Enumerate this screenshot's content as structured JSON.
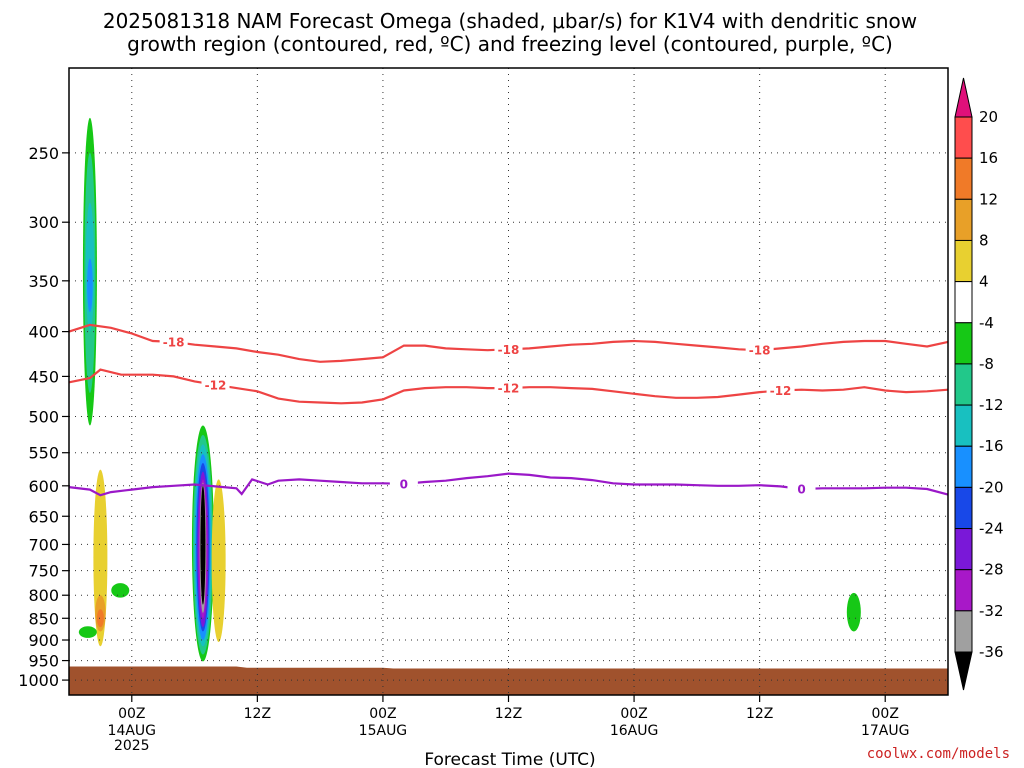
{
  "title_line1": "2025081318 NAM Forecast Omega (shaded, μbar/s) for K1V4 with dendritic snow",
  "title_line2": "growth region (contoured, red, ºC) and freezing level (contoured, purple, ºC)",
  "credit": "coolwx.com/models",
  "chart_data": {
    "type": "heatmap",
    "xlabel": "Forecast Time (UTC)",
    "y_axis": {
      "reversed": true,
      "ticks": [
        "250",
        "300",
        "350",
        "400",
        "450",
        "500",
        "550",
        "600",
        "650",
        "700",
        "750",
        "800",
        "850",
        "900",
        "950",
        "1000"
      ]
    },
    "x_axis": {
      "ticks": [
        {
          "label": "00Z",
          "date": "14AUG",
          "year": "2025",
          "hour": 6
        },
        {
          "label": "12Z",
          "date": "",
          "year": "",
          "hour": 18
        },
        {
          "label": "00Z",
          "date": "15AUG",
          "year": "",
          "hour": 30
        },
        {
          "label": "12Z",
          "date": "",
          "year": "",
          "hour": 42
        },
        {
          "label": "00Z",
          "date": "16AUG",
          "year": "",
          "hour": 54
        },
        {
          "label": "12Z",
          "date": "",
          "year": "",
          "hour": 66
        },
        {
          "label": "00Z",
          "date": "17AUG",
          "year": "",
          "hour": 78
        }
      ],
      "range_hours": [
        0,
        84
      ]
    },
    "grid": true,
    "colorbar": {
      "levels": [
        "20",
        "16",
        "12",
        "8",
        "4",
        "-4",
        "-8",
        "-12",
        "-16",
        "-20",
        "-24",
        "-28",
        "-32",
        "-36"
      ],
      "colors": [
        "#ff3a3a",
        "#ff4d4d",
        "#f07a28",
        "#e8a028",
        "#e8d030",
        "#ffffff",
        "#16c816",
        "#22c88a",
        "#18c0c0",
        "#1890ff",
        "#1848e8",
        "#7a18d8",
        "#a818c8",
        "#a0a0a0",
        "#000000"
      ],
      "top_arrow_color": "#e0107a",
      "bottom_arrow_color": "#000000"
    },
    "contours": [
      {
        "label": "-18",
        "color": "#ee4444",
        "points": [
          [
            0,
            400
          ],
          [
            2,
            393
          ],
          [
            4,
            396
          ],
          [
            6,
            402
          ],
          [
            8,
            410
          ],
          [
            10,
            411
          ],
          [
            12,
            414
          ],
          [
            14,
            416
          ],
          [
            16,
            418
          ],
          [
            18,
            422
          ],
          [
            20,
            425
          ],
          [
            22,
            430
          ],
          [
            24,
            433
          ],
          [
            26,
            432
          ],
          [
            28,
            430
          ],
          [
            30,
            428
          ],
          [
            32,
            415
          ],
          [
            34,
            415
          ],
          [
            36,
            418
          ],
          [
            38,
            419
          ],
          [
            40,
            420
          ],
          [
            42,
            419
          ],
          [
            44,
            418
          ],
          [
            46,
            416
          ],
          [
            48,
            414
          ],
          [
            50,
            413
          ],
          [
            52,
            411
          ],
          [
            54,
            410
          ],
          [
            56,
            411
          ],
          [
            58,
            413
          ],
          [
            60,
            415
          ],
          [
            62,
            417
          ],
          [
            64,
            419
          ],
          [
            66,
            420
          ],
          [
            68,
            418
          ],
          [
            70,
            416
          ],
          [
            72,
            413
          ],
          [
            74,
            411
          ],
          [
            76,
            410
          ],
          [
            78,
            410
          ],
          [
            80,
            413
          ],
          [
            82,
            416
          ],
          [
            84,
            411
          ]
        ],
        "label_hours": [
          10,
          42,
          66
        ]
      },
      {
        "label": "-12",
        "color": "#ee4444",
        "points": [
          [
            0,
            457
          ],
          [
            2,
            452
          ],
          [
            3,
            442
          ],
          [
            5,
            448
          ],
          [
            8,
            448
          ],
          [
            10,
            450
          ],
          [
            12,
            456
          ],
          [
            14,
            460
          ],
          [
            16,
            464
          ],
          [
            18,
            468
          ],
          [
            20,
            477
          ],
          [
            22,
            481
          ],
          [
            24,
            482
          ],
          [
            26,
            483
          ],
          [
            28,
            482
          ],
          [
            30,
            478
          ],
          [
            32,
            467
          ],
          [
            34,
            464
          ],
          [
            36,
            463
          ],
          [
            38,
            463
          ],
          [
            40,
            464
          ],
          [
            42,
            464
          ],
          [
            44,
            463
          ],
          [
            46,
            463
          ],
          [
            48,
            464
          ],
          [
            50,
            465
          ],
          [
            52,
            468
          ],
          [
            54,
            471
          ],
          [
            56,
            474
          ],
          [
            58,
            476
          ],
          [
            60,
            476
          ],
          [
            62,
            475
          ],
          [
            64,
            472
          ],
          [
            66,
            469
          ],
          [
            68,
            467
          ],
          [
            70,
            466
          ],
          [
            72,
            467
          ],
          [
            74,
            466
          ],
          [
            76,
            463
          ],
          [
            78,
            467
          ],
          [
            80,
            469
          ],
          [
            82,
            468
          ],
          [
            84,
            466
          ]
        ],
        "label_hours": [
          14,
          42,
          68
        ]
      },
      {
        "label": "0",
        "color": "#9a18c8",
        "points": [
          [
            0,
            602
          ],
          [
            2,
            606
          ],
          [
            3,
            615
          ],
          [
            4,
            610
          ],
          [
            6,
            606
          ],
          [
            8,
            602
          ],
          [
            10,
            600
          ],
          [
            12,
            598
          ],
          [
            14,
            601
          ],
          [
            16,
            604
          ],
          [
            16.5,
            613
          ],
          [
            17.5,
            590
          ],
          [
            19,
            598
          ],
          [
            20,
            592
          ],
          [
            22,
            590
          ],
          [
            24,
            592
          ],
          [
            26,
            594
          ],
          [
            28,
            596
          ],
          [
            30,
            596
          ],
          [
            32,
            597
          ],
          [
            34,
            594
          ],
          [
            36,
            592
          ],
          [
            38,
            588
          ],
          [
            40,
            585
          ],
          [
            42,
            581
          ],
          [
            44,
            583
          ],
          [
            46,
            587
          ],
          [
            48,
            588
          ],
          [
            50,
            591
          ],
          [
            52,
            596
          ],
          [
            54,
            598
          ],
          [
            56,
            598
          ],
          [
            58,
            598
          ],
          [
            60,
            599
          ],
          [
            62,
            600
          ],
          [
            64,
            600
          ],
          [
            66,
            599
          ],
          [
            68,
            601
          ],
          [
            70,
            605
          ],
          [
            72,
            604
          ],
          [
            74,
            604
          ],
          [
            76,
            604
          ],
          [
            78,
            603
          ],
          [
            80,
            603
          ],
          [
            82,
            605
          ],
          [
            84,
            614
          ]
        ],
        "label_hours": [
          32,
          70
        ]
      }
    ],
    "omega_features": [
      {
        "kind": "uplift",
        "color": "#16c816",
        "hour_center": 2,
        "p_top": 228,
        "p_bottom": 512,
        "inner": [
          {
            "color": "#22c88a",
            "p_top": 250,
            "p_bottom": 470
          },
          {
            "color": "#18c0c0",
            "p_top": 285,
            "p_bottom": 400
          },
          {
            "color": "#1890ff",
            "p_top": 330,
            "p_bottom": 380
          }
        ]
      },
      {
        "kind": "subsidence",
        "color": "#e8d030",
        "hour_center": 3,
        "p_top": 575,
        "p_bottom": 915,
        "inner": [
          {
            "color": "#e8a028",
            "p_top": 800,
            "p_bottom": 880
          },
          {
            "color": "#f07a28",
            "p_top": 830,
            "p_bottom": 870
          }
        ]
      },
      {
        "kind": "uplift",
        "color": "#16c816",
        "hour_center": 4.9,
        "p_top": 775,
        "p_bottom": 805,
        "inner": []
      },
      {
        "kind": "uplift",
        "color": "#16c816",
        "hour_center": 1.8,
        "p_top": 868,
        "p_bottom": 895,
        "inner": []
      },
      {
        "kind": "uplift",
        "color": "#16c816",
        "hour_center": 12.8,
        "p_top": 512,
        "p_bottom": 952,
        "inner": [
          {
            "color": "#22c88a",
            "p_top": 525,
            "p_bottom": 935
          },
          {
            "color": "#18c0c0",
            "p_top": 538,
            "p_bottom": 915
          },
          {
            "color": "#1890ff",
            "p_top": 552,
            "p_bottom": 900
          },
          {
            "color": "#1848e8",
            "p_top": 565,
            "p_bottom": 880
          },
          {
            "color": "#7a18d8",
            "p_top": 578,
            "p_bottom": 870
          },
          {
            "color": "#a818c8",
            "p_top": 590,
            "p_bottom": 850
          },
          {
            "color": "#a0a0a0",
            "p_top": 595,
            "p_bottom": 838
          },
          {
            "color": "#000000",
            "p_top": 600,
            "p_bottom": 820
          }
        ]
      },
      {
        "kind": "subsidence",
        "color": "#e8d030",
        "hour_center": 14.3,
        "p_top": 590,
        "p_bottom": 905,
        "inner": []
      },
      {
        "kind": "uplift",
        "color": "#16c816",
        "hour_center": 75,
        "p_top": 795,
        "p_bottom": 880,
        "inner": []
      }
    ],
    "terrain": {
      "color": "#a0522d",
      "points": [
        [
          0,
          965
        ],
        [
          16,
          965
        ],
        [
          17,
          968
        ],
        [
          30,
          968
        ],
        [
          31,
          970
        ],
        [
          84,
          970
        ]
      ]
    }
  }
}
